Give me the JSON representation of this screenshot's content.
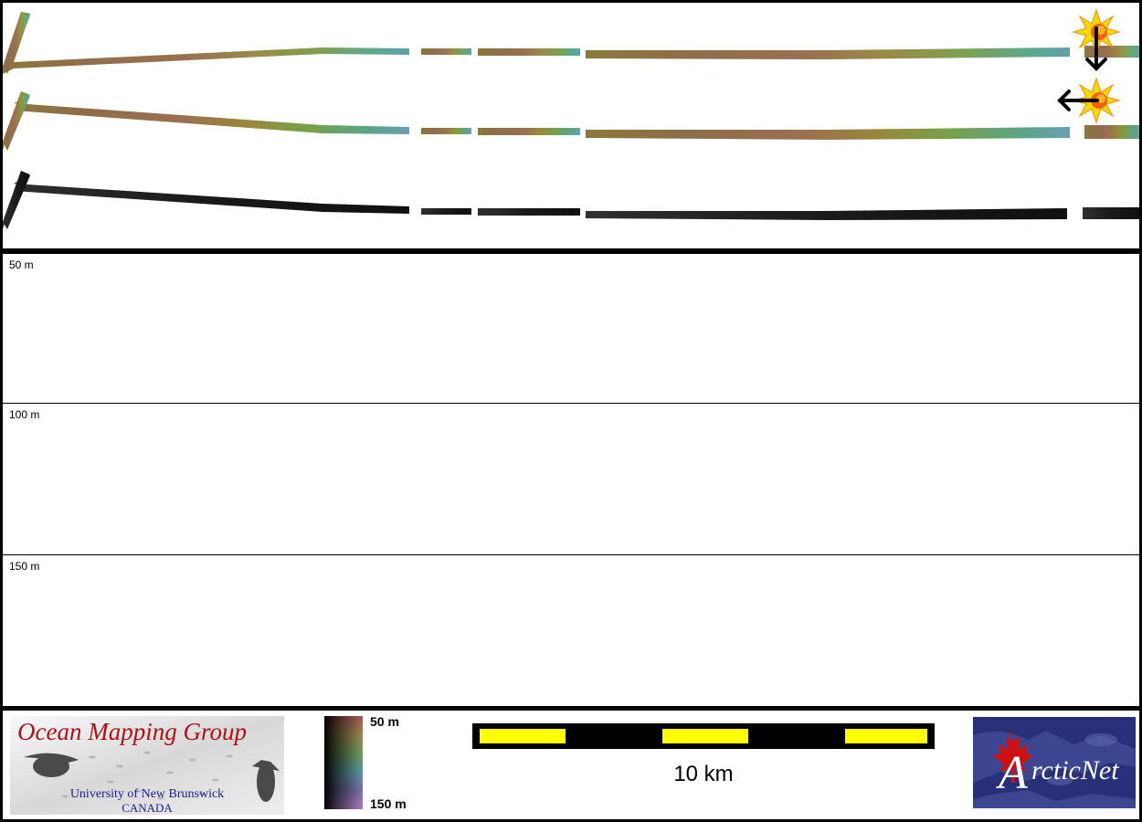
{
  "depth_rows": [
    {
      "label": "50 m"
    },
    {
      "label": "100 m"
    },
    {
      "label": "150 m"
    }
  ],
  "colorbar": {
    "top_label": "50 m",
    "bottom_label": "150 m"
  },
  "scalebar": {
    "label": "10 km",
    "colors": {
      "fill": "#ffff00",
      "border": "#000000"
    }
  },
  "logos": {
    "ocean_mapping": {
      "title": "Ocean Mapping Group",
      "university": "University of New Brunswick",
      "country": "CANADA"
    },
    "arcticnet": {
      "text": "ArcticNet"
    }
  },
  "swath_tracks": [
    {
      "name": "bathymetry-color"
    },
    {
      "name": "bathymetry-sunshaded"
    },
    {
      "name": "backscatter"
    }
  ],
  "colors": {
    "frame": "#000000",
    "panel": "#ffffff",
    "sun": "#ffd800"
  }
}
